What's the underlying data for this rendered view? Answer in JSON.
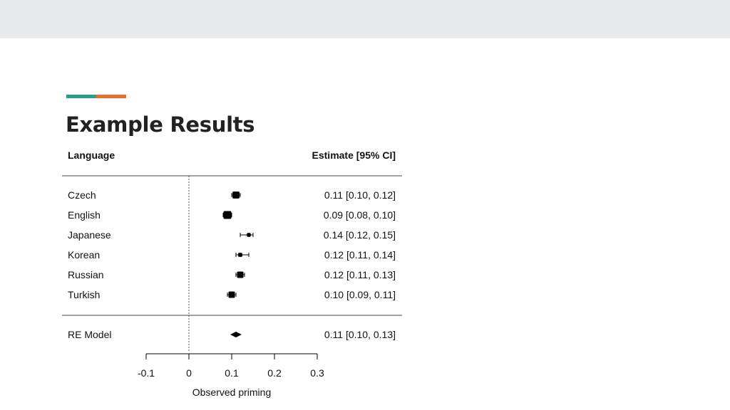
{
  "slide": {
    "title": "Example Results",
    "accent_colors": [
      "#2a9d8f",
      "#e76f2a"
    ],
    "band_color": "#e8e9eb"
  },
  "chart_data": {
    "type": "forest",
    "header_left": "Language",
    "header_right": "Estimate [95% CI]",
    "xlabel": "Observed priming",
    "xlim": [
      -0.1,
      0.3
    ],
    "xticks": [
      -0.1,
      0,
      0.1,
      0.2,
      0.3
    ],
    "xtick_labels": [
      "-0.1",
      "0",
      "0.1",
      "0.2",
      "0.3"
    ],
    "reference_line": 0,
    "rows": [
      {
        "label": "Czech",
        "estimate": 0.11,
        "ci_low": 0.1,
        "ci_high": 0.12,
        "text": "0.11 [0.10, 0.12]",
        "weight": 0.85
      },
      {
        "label": "English",
        "estimate": 0.09,
        "ci_low": 0.08,
        "ci_high": 0.1,
        "text": "0.09 [0.08, 0.10]",
        "weight": 1.0
      },
      {
        "label": "Japanese",
        "estimate": 0.14,
        "ci_low": 0.12,
        "ci_high": 0.15,
        "text": "0.14 [0.12, 0.15]",
        "weight": 0.3
      },
      {
        "label": "Korean",
        "estimate": 0.12,
        "ci_low": 0.11,
        "ci_high": 0.14,
        "text": "0.12 [0.11, 0.14]",
        "weight": 0.35
      },
      {
        "label": "Russian",
        "estimate": 0.12,
        "ci_low": 0.11,
        "ci_high": 0.13,
        "text": "0.12 [0.11, 0.13]",
        "weight": 0.75
      },
      {
        "label": "Turkish",
        "estimate": 0.1,
        "ci_low": 0.09,
        "ci_high": 0.11,
        "text": "0.10 [0.09, 0.11]",
        "weight": 0.75
      }
    ],
    "summary": {
      "label": "RE Model",
      "estimate": 0.11,
      "ci_low": 0.1,
      "ci_high": 0.13,
      "text": "0.11 [0.10, 0.13]"
    }
  }
}
